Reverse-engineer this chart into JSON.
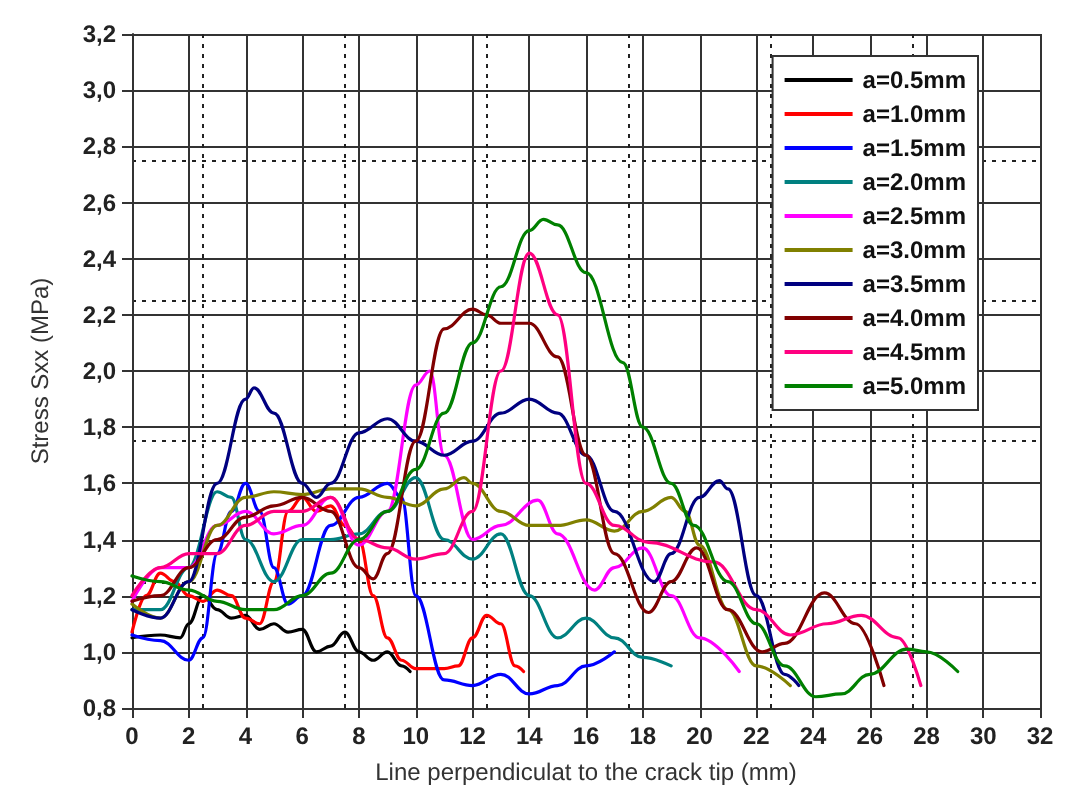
{
  "chart_data": {
    "type": "line",
    "xlabel": "Line perpendiculat to the crack tip (mm)",
    "ylabel": "Stress Sxx (MPa)",
    "xlim": [
      0,
      32
    ],
    "xticks": [
      0,
      2,
      4,
      6,
      8,
      10,
      12,
      14,
      16,
      18,
      20,
      22,
      24,
      26,
      28,
      30,
      32
    ],
    "ylim": [
      0.8,
      3.2
    ],
    "yticks": [
      {
        "value": 0.8,
        "label": "0,8"
      },
      {
        "value": 1.0,
        "label": "1,0"
      },
      {
        "value": 1.2,
        "label": "1,2"
      },
      {
        "value": 1.4,
        "label": "1,4"
      },
      {
        "value": 1.6,
        "label": "1,6"
      },
      {
        "value": 1.8,
        "label": "1,8"
      },
      {
        "value": 2.0,
        "label": "2,0"
      },
      {
        "value": 2.2,
        "label": "2,2"
      },
      {
        "value": 2.4,
        "label": "2,4"
      },
      {
        "value": 2.6,
        "label": "2,6"
      },
      {
        "value": 2.8,
        "label": "2,8"
      },
      {
        "value": 3.0,
        "label": "3,0"
      },
      {
        "value": 3.2,
        "label": "3,2"
      }
    ],
    "grid": true,
    "legend": "top right",
    "marker": "none",
    "line_style": "solid",
    "series": [
      {
        "name": "a=0.5mm",
        "color": "#000000",
        "x": [
          0,
          1,
          1.7,
          2,
          2.5,
          3,
          3.5,
          4,
          4.5,
          5,
          5.5,
          6,
          6.5,
          7,
          7.5,
          8,
          8.5,
          9,
          9.5,
          9.8
        ],
        "values": [
          1.05,
          1.06,
          1.05,
          1.1,
          1.2,
          1.15,
          1.12,
          1.13,
          1.08,
          1.1,
          1.07,
          1.08,
          1.0,
          1.02,
          1.07,
          1.0,
          0.97,
          1.0,
          0.95,
          0.93
        ]
      },
      {
        "name": "a=1.0mm",
        "color": "#ff0000",
        "x": [
          0,
          0.5,
          1,
          1.5,
          2,
          2.5,
          3,
          3.5,
          4,
          4.5,
          5,
          5.5,
          6,
          6.5,
          7,
          7.5,
          8,
          8.5,
          9,
          9.5,
          10,
          11,
          11.5,
          12,
          12.5,
          13,
          13.5,
          13.8
        ],
        "values": [
          1.07,
          1.2,
          1.28,
          1.25,
          1.2,
          1.18,
          1.22,
          1.2,
          1.12,
          1.1,
          1.25,
          1.5,
          1.55,
          1.5,
          1.52,
          1.45,
          1.4,
          1.2,
          1.05,
          0.97,
          0.94,
          0.94,
          0.95,
          1.05,
          1.13,
          1.1,
          0.95,
          0.93
        ]
      },
      {
        "name": "a=1.5mm",
        "color": "#0000ff",
        "x": [
          0,
          1,
          2,
          2.5,
          3,
          3.5,
          4,
          4.5,
          5,
          5.5,
          6,
          7,
          8,
          9,
          9.5,
          10,
          11,
          12,
          13,
          14,
          15,
          16,
          17
        ],
        "values": [
          1.06,
          1.04,
          0.97,
          1.05,
          1.35,
          1.5,
          1.6,
          1.5,
          1.3,
          1.17,
          1.2,
          1.45,
          1.55,
          1.6,
          1.55,
          1.2,
          0.9,
          0.88,
          0.92,
          0.85,
          0.88,
          0.95,
          1.0
        ]
      },
      {
        "name": "a=2.0mm",
        "color": "#008080",
        "x": [
          0,
          1,
          2,
          3,
          3.5,
          4,
          5,
          6,
          7,
          8,
          9,
          10,
          11,
          12,
          13,
          14,
          15,
          16,
          17,
          18,
          19
        ],
        "values": [
          1.15,
          1.15,
          1.3,
          1.57,
          1.55,
          1.4,
          1.25,
          1.4,
          1.4,
          1.42,
          1.5,
          1.62,
          1.4,
          1.33,
          1.42,
          1.2,
          1.05,
          1.12,
          1.05,
          0.98,
          0.95
        ]
      },
      {
        "name": "a=2.5mm",
        "color": "#ff00ff",
        "x": [
          0,
          1,
          2,
          3,
          4,
          5,
          6,
          7,
          8,
          9,
          10,
          10.5,
          11,
          12,
          13,
          14.3,
          15,
          16.3,
          17,
          18,
          19,
          20,
          21.4
        ],
        "values": [
          1.18,
          1.3,
          1.3,
          1.45,
          1.5,
          1.42,
          1.45,
          1.55,
          1.38,
          1.5,
          1.95,
          2.0,
          1.7,
          1.4,
          1.45,
          1.54,
          1.42,
          1.22,
          1.3,
          1.37,
          1.2,
          1.05,
          0.93
        ]
      },
      {
        "name": "a=3.0mm",
        "color": "#808000",
        "x": [
          0,
          1,
          2,
          3,
          4,
          5,
          6,
          7,
          8,
          9,
          10,
          11,
          11.7,
          12,
          13,
          14,
          15,
          16,
          17,
          18,
          19,
          19.5,
          20,
          21,
          22,
          23.2
        ],
        "values": [
          1.17,
          1.12,
          1.25,
          1.45,
          1.55,
          1.57,
          1.56,
          1.58,
          1.58,
          1.55,
          1.52,
          1.58,
          1.62,
          1.6,
          1.5,
          1.45,
          1.45,
          1.47,
          1.43,
          1.5,
          1.55,
          1.5,
          1.38,
          1.15,
          0.95,
          0.88
        ]
      },
      {
        "name": "a=3.5mm",
        "color": "#000080",
        "x": [
          0,
          1,
          2,
          3,
          4,
          4.3,
          5,
          6,
          6.5,
          7,
          8,
          9,
          10,
          11,
          12,
          13,
          14,
          15,
          16,
          17,
          18.4,
          19,
          20,
          20.7,
          21,
          22,
          23,
          23.5
        ],
        "values": [
          1.15,
          1.12,
          1.25,
          1.6,
          1.9,
          1.94,
          1.85,
          1.6,
          1.55,
          1.6,
          1.78,
          1.83,
          1.75,
          1.7,
          1.75,
          1.85,
          1.9,
          1.85,
          1.7,
          1.5,
          1.25,
          1.35,
          1.55,
          1.61,
          1.58,
          1.2,
          0.92,
          0.88
        ]
      },
      {
        "name": "a=4.0mm",
        "color": "#800000",
        "x": [
          0,
          1,
          2,
          3,
          4,
          5,
          6,
          7,
          8,
          8.5,
          9,
          10,
          11,
          12,
          12.5,
          13,
          14,
          15,
          16,
          17,
          18.2,
          19,
          19.9,
          21,
          22.2,
          23,
          24.4,
          25.5,
          26.5
        ],
        "values": [
          1.18,
          1.2,
          1.3,
          1.4,
          1.48,
          1.52,
          1.55,
          1.5,
          1.3,
          1.26,
          1.35,
          1.75,
          2.15,
          2.22,
          2.2,
          2.17,
          2.17,
          2.05,
          1.7,
          1.35,
          1.14,
          1.25,
          1.37,
          1.15,
          1.0,
          1.03,
          1.21,
          1.1,
          0.88
        ]
      },
      {
        "name": "a=4.5mm",
        "color": "#ff0080",
        "x": [
          0,
          1,
          2,
          3,
          4,
          5,
          6,
          7,
          8,
          9,
          10,
          11,
          12,
          13,
          14,
          15,
          16,
          17,
          18.2,
          20.5,
          22,
          23.2,
          24.5,
          25.7,
          27,
          27.8
        ],
        "values": [
          1.2,
          1.3,
          1.35,
          1.35,
          1.45,
          1.5,
          1.5,
          1.55,
          1.4,
          1.37,
          1.33,
          1.35,
          1.5,
          2.0,
          2.42,
          2.2,
          1.6,
          1.45,
          1.39,
          1.32,
          1.15,
          1.06,
          1.1,
          1.13,
          1.05,
          0.88
        ]
      },
      {
        "name": "a=5.0mm",
        "color": "#008000",
        "x": [
          0,
          1,
          2,
          3,
          4,
          5,
          6,
          7,
          8,
          9,
          10,
          11,
          12,
          13,
          14,
          14.5,
          15,
          16,
          17.3,
          18,
          19,
          19.8,
          21,
          22,
          23,
          24.1,
          25,
          26,
          27.3,
          28,
          29.1
        ],
        "values": [
          1.27,
          1.25,
          1.22,
          1.18,
          1.15,
          1.15,
          1.2,
          1.28,
          1.4,
          1.5,
          1.65,
          1.85,
          2.1,
          2.3,
          2.5,
          2.54,
          2.52,
          2.35,
          2.03,
          1.8,
          1.6,
          1.45,
          1.25,
          1.1,
          0.95,
          0.84,
          0.85,
          0.92,
          1.01,
          1.0,
          0.93
        ]
      }
    ]
  }
}
